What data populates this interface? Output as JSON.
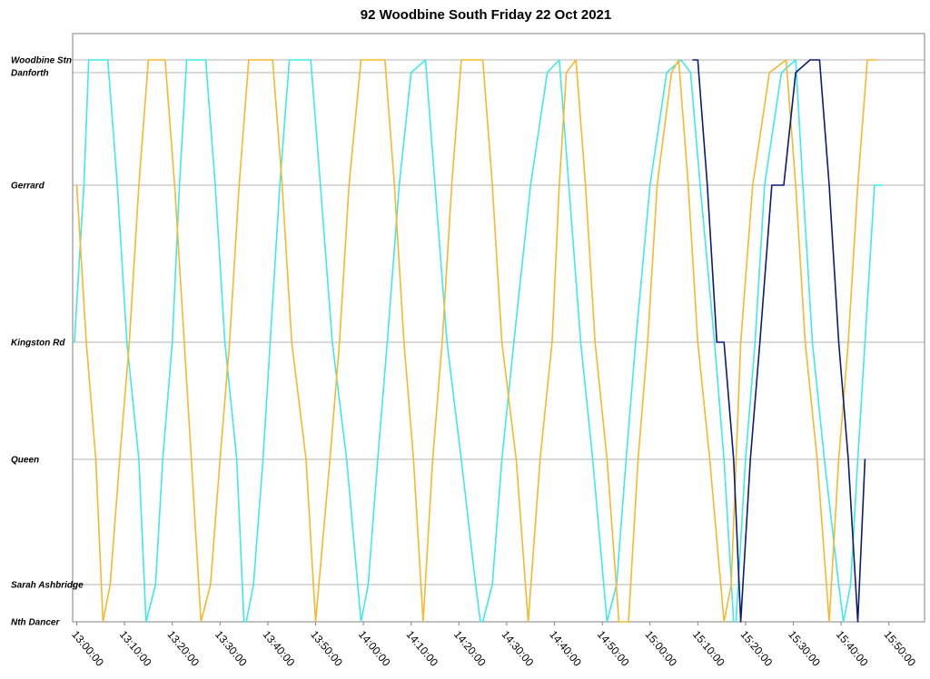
{
  "chart_data": {
    "type": "line",
    "title": "92 Woodbine South Friday 22 Oct 2021",
    "xlabel": "",
    "ylabel": "",
    "grid": true,
    "x_axis": {
      "start": "13:00:00",
      "end": "15:55:00",
      "tick_labels": [
        "13:00:00",
        "13:10:00",
        "13:20:00",
        "13:30:00",
        "13:40:00",
        "13:50:00",
        "14:00:00",
        "14:10:00",
        "14:20:00",
        "14:30:00",
        "14:40:00",
        "14:50:00",
        "15:00:00",
        "15:10:00",
        "15:20:00",
        "15:30:00",
        "15:40:00",
        "15:50:00"
      ]
    },
    "stops": [
      {
        "name": "Woodbine Stn"
      },
      {
        "name": "Danforth"
      },
      {
        "name": "Gerrard"
      },
      {
        "name": "Kingston Rd"
      },
      {
        "name": "Queen"
      },
      {
        "name": "Sarah Ashbridge"
      },
      {
        "name": "Nth Dancer"
      }
    ],
    "series_colors": {
      "cyan": "#40e8e8",
      "orange": "#f5b82e",
      "navy": "#0c1a78"
    },
    "series": [
      {
        "color": "cyan",
        "points": [
          [
            "12:59:30",
            "Kingston Rd"
          ],
          [
            "13:01:30",
            "Gerrard"
          ],
          [
            "13:02:30",
            "Woodbine Stn"
          ],
          [
            "13:06:30",
            "Woodbine Stn"
          ],
          [
            "13:08:30",
            "Gerrard"
          ],
          [
            "13:10:30",
            "Kingston Rd"
          ],
          [
            "13:13:00",
            "Queen"
          ],
          [
            "13:14:30",
            "Nth Dancer"
          ],
          [
            "13:16:30",
            "Sarah Ashbridge"
          ],
          [
            "13:18:00",
            "Queen"
          ],
          [
            "13:20:00",
            "Kingston Rd"
          ],
          [
            "13:21:30",
            "Gerrard"
          ],
          [
            "13:23:00",
            "Woodbine Stn"
          ],
          [
            "13:27:00",
            "Woodbine Stn"
          ],
          [
            "13:29:00",
            "Gerrard"
          ],
          [
            "13:31:00",
            "Kingston Rd"
          ],
          [
            "13:33:30",
            "Queen"
          ],
          [
            "13:35:00",
            "Nth Dancer"
          ]
        ]
      },
      {
        "color": "cyan",
        "points": [
          [
            "13:35:30",
            "Nth Dancer"
          ],
          [
            "13:37:00",
            "Sarah Ashbridge"
          ],
          [
            "13:39:00",
            "Queen"
          ],
          [
            "13:40:30",
            "Kingston Rd"
          ],
          [
            "13:42:30",
            "Gerrard"
          ],
          [
            "13:44:30",
            "Woodbine Stn"
          ],
          [
            "13:49:00",
            "Woodbine Stn"
          ],
          [
            "13:51:00",
            "Gerrard"
          ],
          [
            "13:53:30",
            "Kingston Rd"
          ],
          [
            "13:56:30",
            "Queen"
          ],
          [
            "13:59:30",
            "Nth Dancer"
          ],
          [
            "14:01:00",
            "Sarah Ashbridge"
          ],
          [
            "14:03:00",
            "Queen"
          ],
          [
            "14:05:00",
            "Kingston Rd"
          ],
          [
            "14:07:30",
            "Gerrard"
          ],
          [
            "14:10:00",
            "Danforth"
          ],
          [
            "14:13:00",
            "Woodbine Stn"
          ],
          [
            "14:15:00",
            "Gerrard"
          ],
          [
            "14:17:30",
            "Kingston Rd"
          ],
          [
            "14:20:30",
            "Queen"
          ],
          [
            "14:23:30",
            "Sarah Ashbridge"
          ],
          [
            "14:24:30",
            "Nth Dancer"
          ]
        ]
      },
      {
        "color": "cyan",
        "points": [
          [
            "14:25:00",
            "Nth Dancer"
          ],
          [
            "14:27:00",
            "Sarah Ashbridge"
          ],
          [
            "14:29:00",
            "Queen"
          ],
          [
            "14:31:30",
            "Kingston Rd"
          ],
          [
            "14:35:00",
            "Gerrard"
          ],
          [
            "14:38:30",
            "Danforth"
          ],
          [
            "14:41:00",
            "Woodbine Stn"
          ],
          [
            "14:43:00",
            "Gerrard"
          ],
          [
            "14:45:30",
            "Kingston Rd"
          ],
          [
            "14:48:00",
            "Queen"
          ],
          [
            "14:51:00",
            "Nth Dancer"
          ],
          [
            "14:53:00",
            "Sarah Ashbridge"
          ],
          [
            "14:55:00",
            "Queen"
          ],
          [
            "14:57:00",
            "Kingston Rd"
          ],
          [
            "15:00:00",
            "Gerrard"
          ],
          [
            "15:03:30",
            "Danforth"
          ],
          [
            "15:06:30",
            "Woodbine Stn"
          ],
          [
            "15:08:30",
            "Danforth"
          ],
          [
            "15:10:30",
            "Gerrard"
          ],
          [
            "15:13:30",
            "Kingston Rd"
          ],
          [
            "15:15:30",
            "Queen"
          ],
          [
            "15:17:30",
            "Nth Dancer"
          ]
        ]
      },
      {
        "color": "cyan",
        "points": [
          [
            "15:18:00",
            "Nth Dancer"
          ],
          [
            "15:20:00",
            "Queen"
          ],
          [
            "15:22:00",
            "Kingston Rd"
          ],
          [
            "15:24:00",
            "Gerrard"
          ],
          [
            "15:27:30",
            "Danforth"
          ],
          [
            "15:30:30",
            "Woodbine Stn"
          ],
          [
            "15:32:00",
            "Gerrard"
          ],
          [
            "15:34:00",
            "Kingston Rd"
          ],
          [
            "15:36:30",
            "Queen"
          ],
          [
            "15:39:30",
            "Sarah Ashbridge"
          ],
          [
            "15:40:30",
            "Nth Dancer"
          ],
          [
            "15:42:00",
            "Sarah Ashbridge"
          ],
          [
            "15:43:30",
            "Queen"
          ],
          [
            "15:45:00",
            "Kingston Rd"
          ],
          [
            "15:47:00",
            "Gerrard"
          ],
          [
            "15:48:30",
            "Gerrard"
          ]
        ]
      },
      {
        "color": "orange",
        "points": [
          [
            "13:00:00",
            "Gerrard"
          ],
          [
            "13:02:00",
            "Kingston Rd"
          ],
          [
            "13:04:00",
            "Queen"
          ],
          [
            "13:05:30",
            "Nth Dancer"
          ],
          [
            "13:07:00",
            "Sarah Ashbridge"
          ],
          [
            "13:09:00",
            "Queen"
          ],
          [
            "13:11:00",
            "Kingston Rd"
          ],
          [
            "13:13:00",
            "Gerrard"
          ],
          [
            "13:15:00",
            "Woodbine Stn"
          ],
          [
            "13:18:30",
            "Woodbine Stn"
          ],
          [
            "13:20:30",
            "Gerrard"
          ],
          [
            "13:22:30",
            "Kingston Rd"
          ],
          [
            "13:24:00",
            "Queen"
          ],
          [
            "13:26:00",
            "Nth Dancer"
          ],
          [
            "13:28:00",
            "Sarah Ashbridge"
          ],
          [
            "13:30:00",
            "Queen"
          ],
          [
            "13:32:00",
            "Kingston Rd"
          ],
          [
            "13:34:00",
            "Gerrard"
          ],
          [
            "13:36:00",
            "Woodbine Stn"
          ],
          [
            "13:41:00",
            "Woodbine Stn"
          ],
          [
            "13:43:00",
            "Gerrard"
          ],
          [
            "13:45:00",
            "Kingston Rd"
          ],
          [
            "13:48:00",
            "Queen"
          ],
          [
            "13:50:00",
            "Nth Dancer"
          ],
          [
            "13:53:00",
            "Queen"
          ],
          [
            "13:55:00",
            "Kingston Rd"
          ],
          [
            "13:57:00",
            "Gerrard"
          ],
          [
            "13:59:30",
            "Woodbine Stn"
          ],
          [
            "14:04:30",
            "Woodbine Stn"
          ],
          [
            "14:06:30",
            "Gerrard"
          ],
          [
            "14:08:30",
            "Kingston Rd"
          ],
          [
            "14:10:30",
            "Queen"
          ],
          [
            "14:12:30",
            "Nth Dancer"
          ],
          [
            "14:14:30",
            "Queen"
          ],
          [
            "14:16:30",
            "Kingston Rd"
          ],
          [
            "14:18:30",
            "Gerrard"
          ],
          [
            "14:20:30",
            "Woodbine Stn"
          ],
          [
            "14:25:00",
            "Woodbine Stn"
          ],
          [
            "14:27:00",
            "Gerrard"
          ],
          [
            "14:29:00",
            "Kingston Rd"
          ],
          [
            "14:32:00",
            "Queen"
          ],
          [
            "14:34:30",
            "Nth Dancer"
          ],
          [
            "14:37:00",
            "Queen"
          ],
          [
            "14:39:30",
            "Kingston Rd"
          ],
          [
            "14:41:00",
            "Gerrard"
          ],
          [
            "14:42:30",
            "Danforth"
          ],
          [
            "14:44:30",
            "Woodbine Stn"
          ],
          [
            "14:46:30",
            "Gerrard"
          ],
          [
            "14:48:30",
            "Kingston Rd"
          ],
          [
            "14:51:00",
            "Queen"
          ],
          [
            "14:53:30",
            "Nth Dancer"
          ],
          [
            "14:55:30",
            "Nth Dancer"
          ],
          [
            "14:57:30",
            "Queen"
          ],
          [
            "14:59:30",
            "Kingston Rd"
          ],
          [
            "15:01:30",
            "Gerrard"
          ],
          [
            "15:04:30",
            "Danforth"
          ],
          [
            "15:06:00",
            "Woodbine Stn"
          ],
          [
            "15:08:00",
            "Gerrard"
          ],
          [
            "15:10:00",
            "Kingston Rd"
          ],
          [
            "15:12:30",
            "Queen"
          ],
          [
            "15:15:30",
            "Nth Dancer"
          ],
          [
            "15:17:00",
            "Sarah Ashbridge"
          ],
          [
            "15:19:00",
            "Kingston Rd"
          ],
          [
            "15:21:30",
            "Gerrard"
          ],
          [
            "15:25:00",
            "Danforth"
          ],
          [
            "15:28:30",
            "Woodbine Stn"
          ],
          [
            "15:30:30",
            "Gerrard"
          ],
          [
            "15:32:30",
            "Kingston Rd"
          ],
          [
            "15:35:00",
            "Queen"
          ],
          [
            "15:37:30",
            "Nth Dancer"
          ],
          [
            "15:39:30",
            "Queen"
          ],
          [
            "15:41:30",
            "Kingston Rd"
          ],
          [
            "15:43:30",
            "Gerrard"
          ],
          [
            "15:45:30",
            "Woodbine Stn"
          ],
          [
            "15:47:30",
            "Woodbine Stn"
          ]
        ]
      },
      {
        "color": "navy",
        "points": [
          [
            "15:09:00",
            "Woodbine Stn"
          ],
          [
            "15:10:00",
            "Woodbine Stn"
          ],
          [
            "15:12:00",
            "Gerrard"
          ],
          [
            "15:14:00",
            "Kingston Rd"
          ],
          [
            "15:15:30",
            "Kingston Rd"
          ],
          [
            "15:17:30",
            "Queen"
          ],
          [
            "15:19:00",
            "Nth Dancer"
          ],
          [
            "15:21:00",
            "Queen"
          ],
          [
            "15:23:00",
            "Kingston Rd"
          ],
          [
            "15:25:30",
            "Gerrard"
          ],
          [
            "15:28:00",
            "Gerrard"
          ],
          [
            "15:30:30",
            "Danforth"
          ],
          [
            "15:33:30",
            "Woodbine Stn"
          ],
          [
            "15:35:30",
            "Woodbine Stn"
          ],
          [
            "15:37:30",
            "Gerrard"
          ],
          [
            "15:39:30",
            "Kingston Rd"
          ],
          [
            "15:41:30",
            "Queen"
          ],
          [
            "15:43:30",
            "Nth Dancer"
          ],
          [
            "15:45:00",
            "Queen"
          ]
        ]
      }
    ]
  }
}
